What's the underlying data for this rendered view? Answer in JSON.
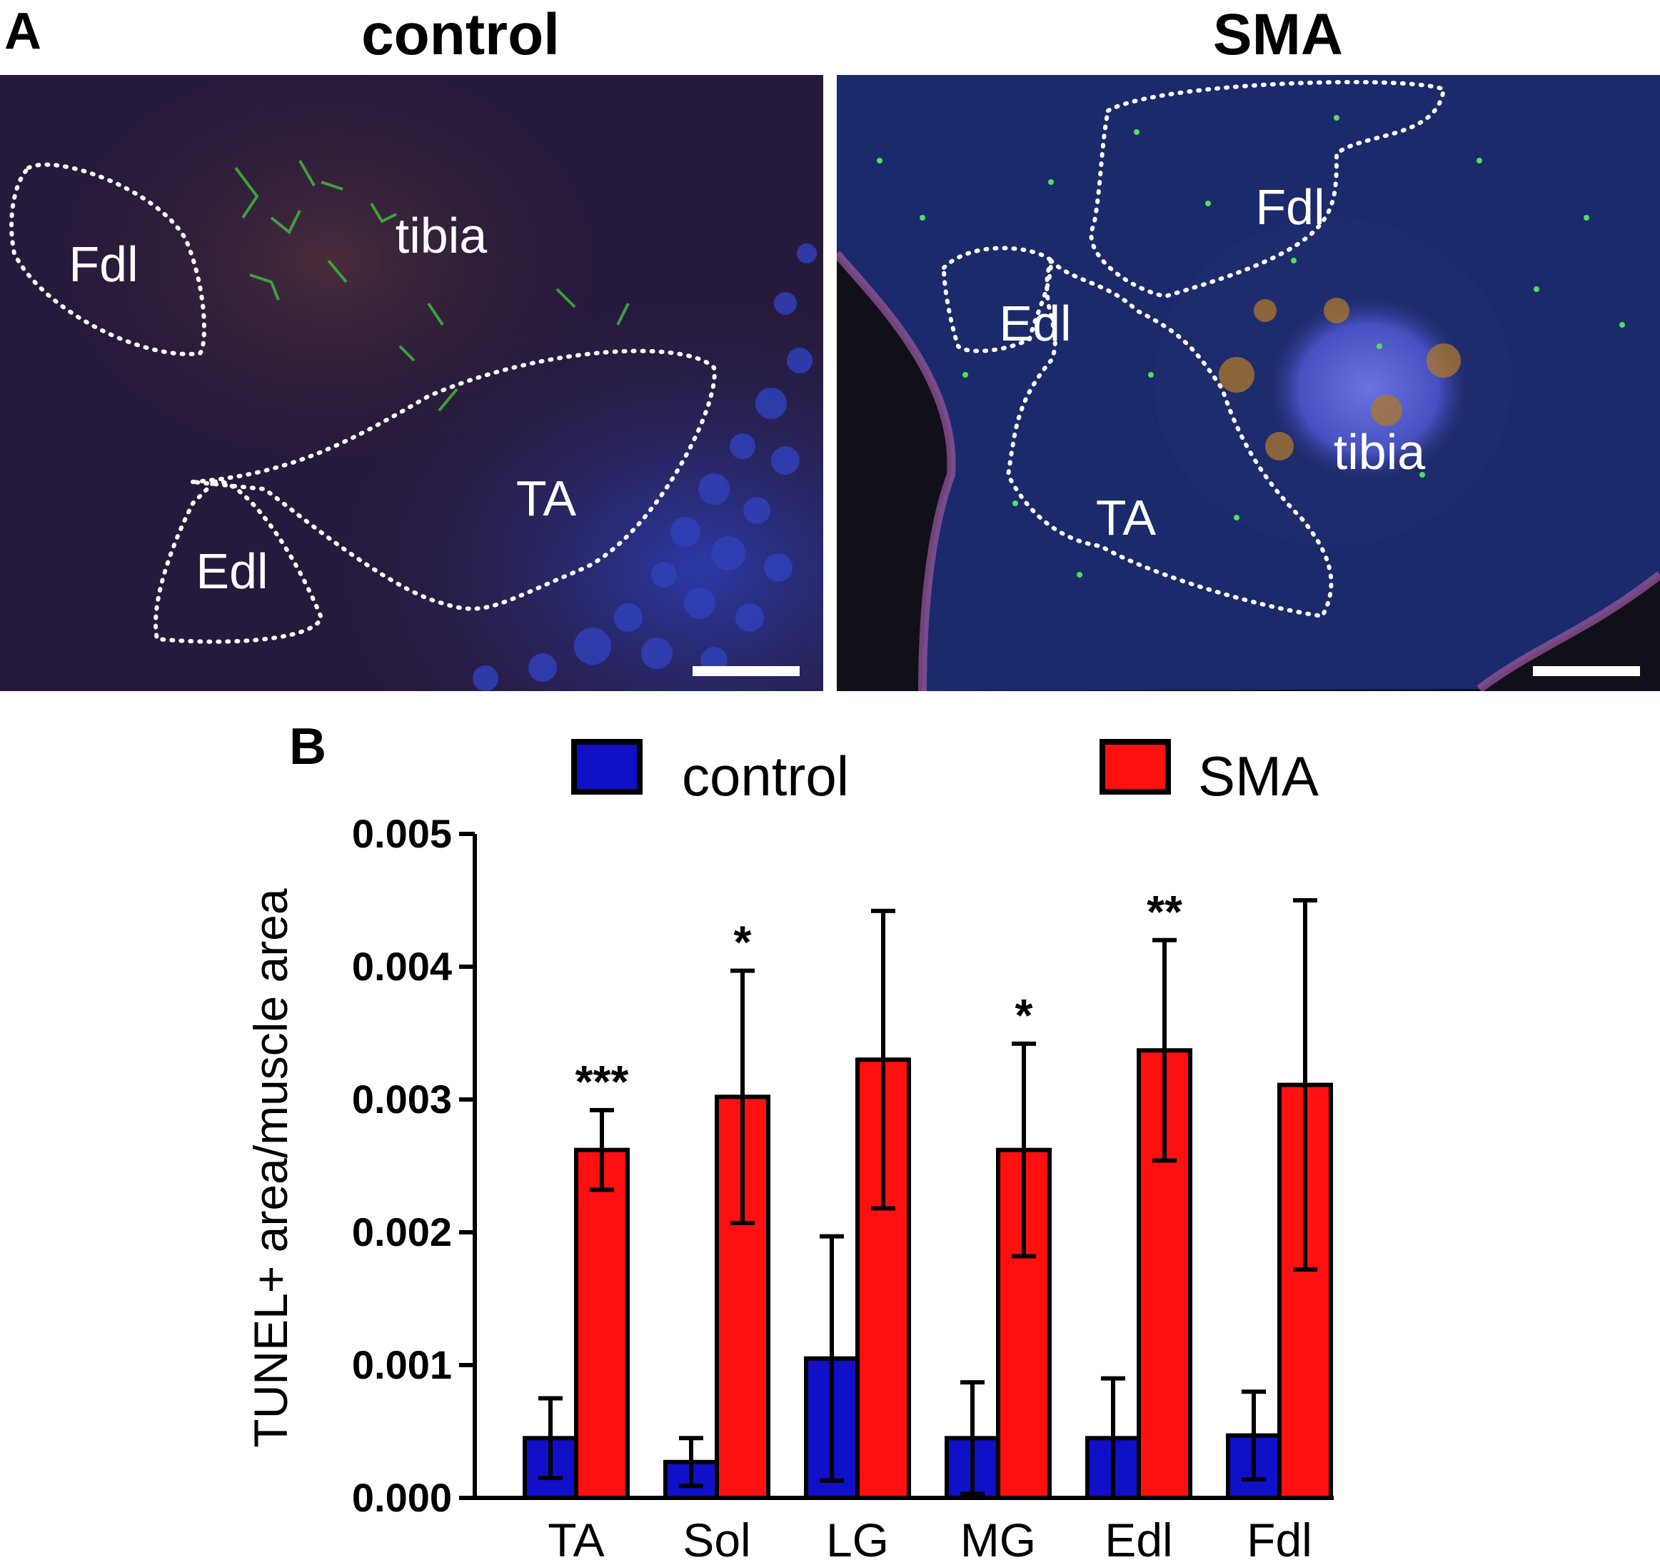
{
  "panel_a": {
    "letter": "A",
    "control": {
      "title": "control",
      "labels": {
        "fdl": "Fdl",
        "tibia": "tibia",
        "ta": "TA",
        "edl": "Edl"
      }
    },
    "sma": {
      "title": "SMA",
      "labels": {
        "fdl": "Fdl",
        "edl": "Edl",
        "ta": "TA",
        "tibia": "tibia"
      }
    }
  },
  "panel_b": {
    "letter": "B",
    "legend": {
      "control": {
        "label": "control",
        "color": "#1010c8"
      },
      "sma": {
        "label": "SMA",
        "color": "#ff1010"
      }
    }
  },
  "chart_data": {
    "type": "bar",
    "title": "",
    "xlabel": "",
    "ylabel": "TUNEL+ area/muscle area",
    "ylim": [
      0,
      0.005
    ],
    "yticks": [
      "0.000",
      "0.001",
      "0.002",
      "0.003",
      "0.004",
      "0.005"
    ],
    "categories": [
      "TA",
      "Sol",
      "LG",
      "MG",
      "Edl",
      "Fdl"
    ],
    "series": [
      {
        "name": "control",
        "color": "#1010c8",
        "values": [
          0.00045,
          0.00027,
          0.00105,
          0.00045,
          0.00045,
          0.00047
        ],
        "error": [
          0.0003,
          0.00018,
          0.00092,
          0.00042,
          0.00045,
          0.00033
        ]
      },
      {
        "name": "SMA",
        "color": "#ff1010",
        "values": [
          0.00262,
          0.00302,
          0.0033,
          0.00262,
          0.00337,
          0.00311
        ],
        "error": [
          0.0003,
          0.00095,
          0.00112,
          0.0008,
          0.00083,
          0.00139
        ]
      }
    ],
    "annotations": [
      "***",
      "*",
      "",
      "*",
      "**",
      ""
    ]
  }
}
